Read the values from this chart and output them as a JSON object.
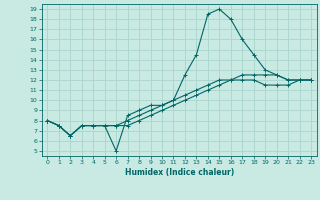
{
  "title": "",
  "xlabel": "Humidex (Indice chaleur)",
  "ylabel": "",
  "background_color": "#c8eae2",
  "grid_color": "#aad4cc",
  "line_color": "#006666",
  "xlim": [
    -0.5,
    23.5
  ],
  "ylim": [
    4.5,
    19.5
  ],
  "xticks": [
    0,
    1,
    2,
    3,
    4,
    5,
    6,
    7,
    8,
    9,
    10,
    11,
    12,
    13,
    14,
    15,
    16,
    17,
    18,
    19,
    20,
    21,
    22,
    23
  ],
  "yticks": [
    5,
    6,
    7,
    8,
    9,
    10,
    11,
    12,
    13,
    14,
    15,
    16,
    17,
    18,
    19
  ],
  "line1_x": [
    0,
    1,
    2,
    3,
    4,
    5,
    6,
    7,
    8,
    9,
    10,
    11,
    12,
    13,
    14,
    15,
    16,
    17,
    18,
    19,
    20,
    21,
    22,
    23
  ],
  "line1_y": [
    8.0,
    7.5,
    6.5,
    7.5,
    7.5,
    7.5,
    5.0,
    8.5,
    9.0,
    9.5,
    9.5,
    10.0,
    12.5,
    14.5,
    18.5,
    19.0,
    18.0,
    16.0,
    14.5,
    13.0,
    12.5,
    12.0,
    12.0,
    12.0
  ],
  "line2_x": [
    0,
    1,
    2,
    3,
    4,
    5,
    6,
    7,
    8,
    9,
    10,
    11,
    12,
    13,
    14,
    15,
    16,
    17,
    18,
    19,
    20,
    21,
    22,
    23
  ],
  "line2_y": [
    8.0,
    7.5,
    6.5,
    7.5,
    7.5,
    7.5,
    7.5,
    7.5,
    8.0,
    8.5,
    9.0,
    9.5,
    10.0,
    10.5,
    11.0,
    11.5,
    12.0,
    12.5,
    12.5,
    12.5,
    12.5,
    12.0,
    12.0,
    12.0
  ],
  "line3_x": [
    0,
    1,
    2,
    3,
    4,
    5,
    6,
    7,
    8,
    9,
    10,
    11,
    12,
    13,
    14,
    15,
    16,
    17,
    18,
    19,
    20,
    21,
    22,
    23
  ],
  "line3_y": [
    8.0,
    7.5,
    6.5,
    7.5,
    7.5,
    7.5,
    7.5,
    8.0,
    8.5,
    9.0,
    9.5,
    10.0,
    10.5,
    11.0,
    11.5,
    12.0,
    12.0,
    12.0,
    12.0,
    11.5,
    11.5,
    11.5,
    12.0,
    12.0
  ]
}
